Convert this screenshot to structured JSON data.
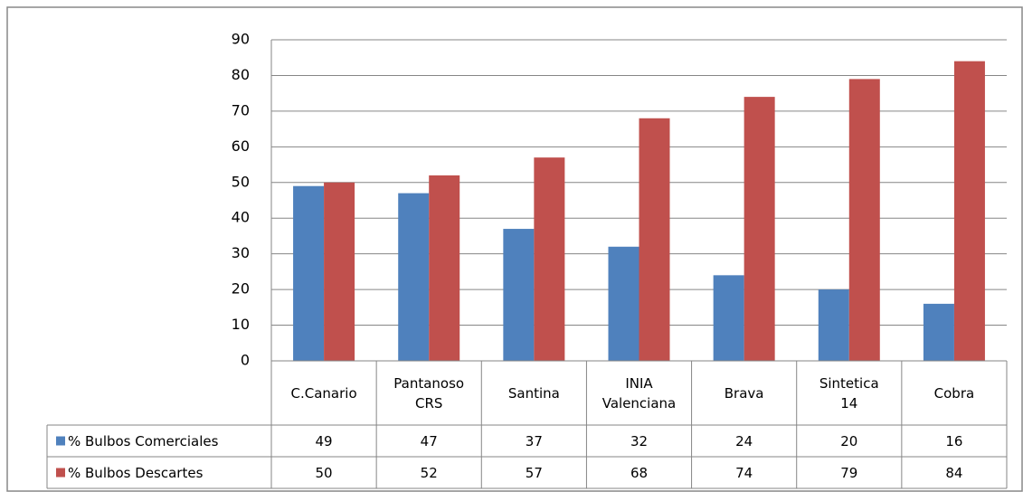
{
  "chart_data": {
    "type": "bar",
    "categories": [
      "C.Canario",
      "Pantanoso CRS",
      "Santina",
      "INIA Valenciana",
      "Brava",
      "Sintetica 14",
      "Cobra"
    ],
    "series": [
      {
        "name": "% Bulbos Comerciales",
        "color": "#4f81bd",
        "values": [
          49,
          47,
          37,
          32,
          24,
          20,
          16
        ]
      },
      {
        "name": "% Bulbos Descartes",
        "color": "#c0504d",
        "values": [
          50,
          52,
          57,
          68,
          74,
          79,
          84
        ]
      }
    ],
    "ylim": [
      0,
      90
    ],
    "yticks": [
      0,
      10,
      20,
      30,
      40,
      50,
      60,
      70,
      80,
      90
    ],
    "grid": true
  }
}
